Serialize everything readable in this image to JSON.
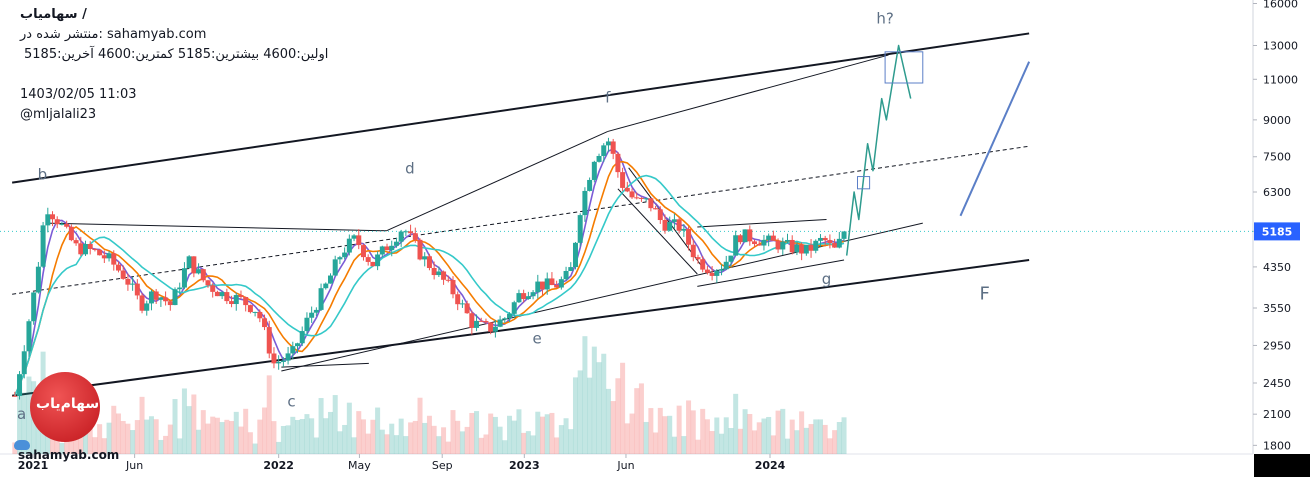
{
  "header": {
    "title": "سهامیاب /",
    "published": "منتشر شده در: sahamyab.com",
    "ohlc": "اولین:4600  بیشترین:5185  کمترین:4600  آخرین:5185",
    "datetime": "1403/02/05 11:03",
    "author": "@mljalali23"
  },
  "brand": "sahamyab.com",
  "logo_text": "سهام‌یاب",
  "colors": {
    "up": "#26a69a",
    "down": "#ef5350",
    "ma_fast": "#7b5cd6",
    "ma_mid": "#f57c00",
    "ma_slow": "#35c9c9",
    "projection": "#2e9b8e",
    "trend": "#131722",
    "channel_blue": "#5b7fc7",
    "price_badge": "#2962ff",
    "label": "#5d6f84"
  },
  "chart_data": {
    "type": "candlestick",
    "y_axis": {
      "scale": "log",
      "ticks": [
        1800,
        2100,
        2450,
        2950,
        3550,
        4350,
        5185,
        6300,
        7500,
        9000,
        11000,
        13000,
        16000
      ],
      "last_price_label": "5185"
    },
    "x_axis": {
      "ticks": [
        {
          "label": "2021",
          "date": "2021-01"
        },
        {
          "label": "Jun",
          "date": "2021-06"
        },
        {
          "label": "2022",
          "date": "2022-01"
        },
        {
          "label": "May",
          "date": "2022-05"
        },
        {
          "label": "Sep",
          "date": "2022-09"
        },
        {
          "label": "2023",
          "date": "2023-01"
        },
        {
          "label": "Jun",
          "date": "2023-06"
        },
        {
          "label": "2024",
          "date": "2024-01"
        }
      ]
    },
    "wave_labels": [
      {
        "text": "a",
        "date": "2020-12-15",
        "price": 2050
      },
      {
        "text": "b",
        "date": "2021-01-15",
        "price": 6700
      },
      {
        "text": "c",
        "date": "2022-01-20",
        "price": 2180
      },
      {
        "text": "d",
        "date": "2022-07-15",
        "price": 6900
      },
      {
        "text": "e",
        "date": "2023-01-20",
        "price": 2980
      },
      {
        "text": "f",
        "date": "2023-05-05",
        "price": 9800
      },
      {
        "text": "g",
        "date": "2024-03-25",
        "price": 4000
      },
      {
        "text": "h?",
        "date": "2024-06-20",
        "price": 14500
      },
      {
        "text": "F",
        "date": "2024-11-15",
        "price": 3700
      }
    ],
    "price_path": [
      [
        "2020-12-05",
        2300
      ],
      [
        "2021-01-05",
        4000
      ],
      [
        "2021-01-20",
        5900
      ],
      [
        "2021-02-10",
        5400
      ],
      [
        "2021-03-05",
        4800
      ],
      [
        "2021-04-01",
        4700
      ],
      [
        "2021-04-25",
        4500
      ],
      [
        "2021-05-20",
        4100
      ],
      [
        "2021-06-10",
        3600
      ],
      [
        "2021-07-01",
        3850
      ],
      [
        "2021-07-25",
        3600
      ],
      [
        "2021-08-20",
        4500
      ],
      [
        "2021-09-15",
        4000
      ],
      [
        "2021-10-10",
        3800
      ],
      [
        "2021-11-05",
        3700
      ],
      [
        "2021-12-01",
        3500
      ],
      [
        "2021-12-25",
        2700
      ],
      [
        "2022-01-20",
        2800
      ],
      [
        "2022-02-15",
        3400
      ],
      [
        "2022-03-10",
        3900
      ],
      [
        "2022-04-05",
        4700
      ],
      [
        "2022-04-25",
        5000
      ],
      [
        "2022-05-20",
        4400
      ],
      [
        "2022-06-15",
        4900
      ],
      [
        "2022-07-05",
        5300
      ],
      [
        "2022-08-01",
        4600
      ],
      [
        "2022-08-25",
        4200
      ],
      [
        "2022-09-20",
        3800
      ],
      [
        "2022-10-15",
        3300
      ],
      [
        "2022-11-10",
        3200
      ],
      [
        "2022-12-05",
        3400
      ],
      [
        "2022-12-25",
        3800
      ],
      [
        "2023-01-20",
        4000
      ],
      [
        "2023-02-15",
        3950
      ],
      [
        "2023-03-10",
        4200
      ],
      [
        "2023-03-25",
        5800
      ],
      [
        "2023-04-15",
        7500
      ],
      [
        "2023-05-05",
        8200
      ],
      [
        "2023-05-25",
        6600
      ],
      [
        "2023-06-15",
        6000
      ],
      [
        "2023-07-05",
        6000
      ],
      [
        "2023-07-25",
        5400
      ],
      [
        "2023-08-20",
        5300
      ],
      [
        "2023-09-15",
        4500
      ],
      [
        "2023-10-05",
        4300
      ],
      [
        "2023-10-25",
        4400
      ],
      [
        "2023-11-15",
        5100
      ],
      [
        "2023-12-10",
        5000
      ],
      [
        "2024-01-05",
        4900
      ],
      [
        "2024-01-30",
        4800
      ],
      [
        "2024-02-25",
        4700
      ],
      [
        "2024-03-20",
        5000
      ],
      [
        "2024-04-05",
        4700
      ],
      [
        "2024-04-24",
        5185
      ]
    ],
    "projection_path": [
      [
        "2024-04-24",
        4600
      ],
      [
        "2024-05-05",
        6300
      ],
      [
        "2024-05-12",
        5500
      ],
      [
        "2024-05-25",
        8000
      ],
      [
        "2024-06-02",
        7000
      ],
      [
        "2024-06-15",
        10000
      ],
      [
        "2024-06-22",
        9000
      ],
      [
        "2024-07-10",
        13000
      ],
      [
        "2024-07-28",
        10000
      ]
    ],
    "moving_averages": [
      {
        "color": "ma_fast",
        "window": 4
      },
      {
        "color": "ma_mid",
        "window": 8
      },
      {
        "color": "ma_slow",
        "window": 14
      }
    ],
    "trendlines": [
      {
        "from": [
          "2020-12-01",
          6600
        ],
        "to": [
          "2025-01-20",
          13800
        ],
        "style": "bold"
      },
      {
        "from": [
          "2020-12-01",
          2300
        ],
        "to": [
          "2025-01-20",
          4500
        ],
        "style": "bold"
      },
      {
        "from": [
          "2020-12-01",
          3800
        ],
        "to": [
          "2025-01-20",
          7900
        ],
        "style": "dashed"
      },
      {
        "from": [
          "2021-01-20",
          5400
        ],
        "to": [
          "2022-06-10",
          5200
        ],
        "style": "thin"
      },
      {
        "from": [
          "2022-06-10",
          5200
        ],
        "to": [
          "2023-05-05",
          8500
        ],
        "style": "thin"
      },
      {
        "from": [
          "2023-05-05",
          8500
        ],
        "to": [
          "2024-06-25",
          12400
        ],
        "style": "thin"
      },
      {
        "from": [
          "2022-01-05",
          2650
        ],
        "to": [
          "2022-05-15",
          2700
        ],
        "style": "thin"
      },
      {
        "from": [
          "2022-01-05",
          2600
        ],
        "to": [
          "2024-08-15",
          5400
        ],
        "style": "thin"
      },
      {
        "from": [
          "2023-06-05",
          7100
        ],
        "to": [
          "2023-09-25",
          4300
        ],
        "style": "thin"
      },
      {
        "from": [
          "2023-05-20",
          6400
        ],
        "to": [
          "2023-09-15",
          4200
        ],
        "style": "thin"
      },
      {
        "from": [
          "2023-09-15",
          3950
        ],
        "to": [
          "2024-04-20",
          4500
        ],
        "style": "thin"
      },
      {
        "from": [
          "2023-09-15",
          5300
        ],
        "to": [
          "2024-03-25",
          5500
        ],
        "style": "thin"
      },
      {
        "from": [
          "2024-10-10",
          5600
        ],
        "to": [
          "2025-01-20",
          12000
        ],
        "style": "blue"
      }
    ],
    "boxes": [
      {
        "from": [
          "2024-05-10",
          6800
        ],
        "to": [
          "2024-05-28",
          6400
        ]
      },
      {
        "from": [
          "2024-06-20",
          12600
        ],
        "to": [
          "2024-08-15",
          10800
        ]
      }
    ]
  }
}
